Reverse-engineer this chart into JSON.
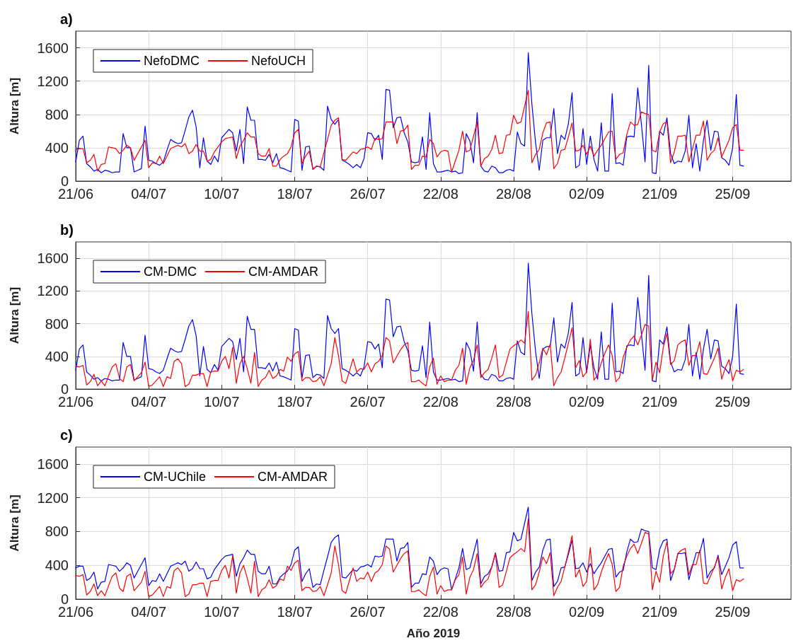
{
  "chart_data": [
    {
      "type": "line",
      "title": "a)",
      "ylabel": "Altura [m]",
      "categories": [
        "21/06",
        null,
        null,
        null,
        null,
        null,
        null,
        null,
        null,
        null,
        null,
        null,
        null,
        null,
        null,
        null,
        null,
        null,
        null,
        null,
        "04/07",
        null,
        null,
        null,
        null,
        null,
        null,
        null,
        null,
        null,
        null,
        null,
        null,
        null,
        null,
        null,
        null,
        null,
        null,
        null,
        "10/07",
        null,
        null,
        null,
        null,
        null,
        null,
        null,
        null,
        null,
        null,
        null,
        null,
        null,
        null,
        null,
        null,
        null,
        null,
        null,
        "18/07",
        null,
        null,
        null,
        null,
        null,
        null,
        null,
        null,
        null,
        null,
        null,
        null,
        null,
        null,
        null,
        null,
        null,
        null,
        null,
        "26/07",
        null,
        null,
        null,
        null,
        null,
        null,
        null,
        null,
        null,
        null,
        null,
        null,
        null,
        null,
        null,
        null,
        null,
        null,
        null,
        "22/08",
        null,
        null,
        null,
        null,
        null,
        null,
        null,
        null,
        null,
        null,
        null,
        null,
        null,
        null,
        null,
        null,
        null,
        null,
        null,
        "28/08",
        null,
        null,
        null,
        null,
        null,
        null,
        null,
        null,
        null,
        null,
        null,
        null,
        null,
        null,
        null,
        null,
        null,
        null,
        null,
        "02/09",
        null,
        null,
        null,
        null,
        null,
        null,
        null,
        null,
        null,
        null,
        null,
        null,
        null,
        null,
        null,
        null,
        null,
        null,
        null,
        "21/09",
        null,
        null,
        null,
        null,
        null,
        null,
        null,
        null,
        null,
        null,
        null,
        null,
        null,
        null,
        null,
        null,
        null,
        null,
        null,
        "25/09",
        null,
        null,
        null,
        null,
        null,
        null,
        null,
        null,
        null,
        null,
        null,
        null,
        null,
        null,
        null,
        null
      ],
      "ylim": [
        0,
        1800
      ],
      "yticks": [
        0,
        400,
        800,
        1200,
        1600
      ],
      "grid": true,
      "legend": "top left",
      "marker": "none",
      "line_style": "solid",
      "series": [
        {
          "name": "NefoDMC",
          "color": "#0000ff",
          "values": [
            230,
            490,
            540,
            210,
            170,
            120,
            140,
            100,
            130,
            120,
            100,
            110,
            110,
            570,
            400,
            400,
            110,
            130,
            150,
            660,
            250,
            240,
            210,
            190,
            230,
            370,
            500,
            470,
            450,
            460,
            610,
            770,
            850,
            650,
            160,
            520,
            240,
            200,
            300,
            230,
            520,
            570,
            620,
            580,
            360,
            620,
            210,
            890,
            730,
            730,
            260,
            260,
            250,
            320,
            220,
            330,
            160,
            150,
            130,
            110,
            740,
            720,
            130,
            410,
            420,
            140,
            180,
            170,
            130,
            900,
            740,
            680,
            740,
            250,
            230,
            200,
            160,
            200,
            160,
            270,
            580,
            570,
            490,
            550,
            260,
            1100,
            1090,
            640,
            760,
            770,
            580,
            470,
            230,
            220,
            230,
            530,
            140,
            820,
            210,
            110,
            110,
            120,
            130,
            110,
            120,
            90,
            100,
            570,
            480,
            220,
            820,
            180,
            120,
            110,
            180,
            160,
            100,
            100,
            130,
            140,
            120,
            590,
            450,
            420,
            1540,
            920,
            460,
            130,
            490,
            520,
            520,
            870,
            330,
            550,
            500,
            690,
            1060,
            160,
            190,
            630,
            200,
            540,
            260,
            120,
            700,
            120,
            120,
            1050,
            210,
            220,
            190,
            530,
            540,
            530,
            1120,
            680,
            230,
            1390,
            100,
            90,
            600,
            550,
            760,
            330,
            210,
            240,
            230,
            360,
            790,
            160,
            450,
            120,
            490,
            730,
            370,
            600,
            590,
            280,
            250,
            190,
            400,
            1040,
            190,
            180,
            null,
            null,
            null,
            null,
            null,
            null,
            null,
            null,
            null,
            null,
            null,
            null,
            null
          ]
        },
        {
          "name": "NefoUCH",
          "color": "#ff0000",
          "values": [
            370,
            390,
            390,
            220,
            250,
            320,
            120,
            200,
            210,
            410,
            400,
            390,
            330,
            370,
            430,
            400,
            250,
            330,
            410,
            490,
            160,
            220,
            210,
            300,
            210,
            300,
            390,
            410,
            430,
            410,
            450,
            330,
            360,
            440,
            360,
            360,
            240,
            260,
            350,
            410,
            470,
            510,
            520,
            530,
            270,
            420,
            490,
            580,
            530,
            530,
            330,
            300,
            300,
            390,
            180,
            180,
            260,
            300,
            330,
            410,
            580,
            620,
            210,
            300,
            360,
            140,
            180,
            170,
            340,
            500,
            670,
            730,
            760,
            260,
            250,
            300,
            350,
            330,
            380,
            390,
            410,
            380,
            510,
            500,
            510,
            710,
            710,
            710,
            450,
            600,
            610,
            670,
            140,
            190,
            190,
            300,
            290,
            500,
            450,
            290,
            350,
            370,
            360,
            110,
            240,
            370,
            600,
            350,
            370,
            540,
            710,
            180,
            270,
            300,
            380,
            550,
            330,
            340,
            550,
            560,
            790,
            690,
            710,
            900,
            1090,
            220,
            320,
            380,
            580,
            700,
            710,
            150,
            210,
            370,
            380,
            530,
            700,
            360,
            370,
            430,
            320,
            420,
            300,
            370,
            430,
            510,
            590,
            600,
            260,
            320,
            340,
            560,
            710,
            670,
            680,
            830,
            810,
            800,
            370,
            350,
            590,
            690,
            710,
            220,
            350,
            540,
            540,
            550,
            230,
            390,
            550,
            550,
            720,
            250,
            330,
            370,
            520,
            290,
            390,
            490,
            640,
            680,
            370,
            370,
            null,
            null,
            null,
            null,
            null,
            null,
            null,
            null,
            null,
            null,
            null,
            null,
            null
          ]
        }
      ]
    },
    {
      "type": "line",
      "title": "b)",
      "ylabel": "Altura [m]",
      "categories": [
        "21/06",
        null,
        null,
        null,
        null,
        null,
        null,
        null,
        null,
        null,
        null,
        null,
        null,
        null,
        null,
        null,
        null,
        null,
        null,
        null,
        "04/07",
        null,
        null,
        null,
        null,
        null,
        null,
        null,
        null,
        null,
        null,
        null,
        null,
        null,
        null,
        null,
        null,
        null,
        null,
        null,
        "10/07",
        null,
        null,
        null,
        null,
        null,
        null,
        null,
        null,
        null,
        null,
        null,
        null,
        null,
        null,
        null,
        null,
        null,
        null,
        null,
        "18/07",
        null,
        null,
        null,
        null,
        null,
        null,
        null,
        null,
        null,
        null,
        null,
        null,
        null,
        null,
        null,
        null,
        null,
        null,
        null,
        "26/07",
        null,
        null,
        null,
        null,
        null,
        null,
        null,
        null,
        null,
        null,
        null,
        null,
        null,
        null,
        null,
        null,
        null,
        null,
        null,
        "22/08",
        null,
        null,
        null,
        null,
        null,
        null,
        null,
        null,
        null,
        null,
        null,
        null,
        null,
        null,
        null,
        null,
        null,
        null,
        null,
        "28/08",
        null,
        null,
        null,
        null,
        null,
        null,
        null,
        null,
        null,
        null,
        null,
        null,
        null,
        null,
        null,
        null,
        null,
        null,
        null,
        "02/09",
        null,
        null,
        null,
        null,
        null,
        null,
        null,
        null,
        null,
        null,
        null,
        null,
        null,
        null,
        null,
        null,
        null,
        null,
        null,
        "21/09",
        null,
        null,
        null,
        null,
        null,
        null,
        null,
        null,
        null,
        null,
        null,
        null,
        null,
        null,
        null,
        null,
        null,
        null,
        null,
        "25/09",
        null,
        null,
        null,
        null,
        null,
        null,
        null,
        null,
        null,
        null,
        null,
        null,
        null,
        null,
        null,
        null
      ],
      "ylim": [
        0,
        1800
      ],
      "yticks": [
        0,
        400,
        800,
        1200,
        1600
      ],
      "grid": true,
      "legend": "top left",
      "marker": "none",
      "line_style": "solid",
      "series": [
        {
          "name": "CM-DMC",
          "color": "#0000ff",
          "values": [
            230,
            490,
            540,
            210,
            170,
            120,
            140,
            100,
            130,
            120,
            100,
            110,
            110,
            570,
            400,
            400,
            110,
            130,
            150,
            660,
            250,
            240,
            210,
            190,
            230,
            370,
            500,
            470,
            450,
            460,
            610,
            770,
            850,
            650,
            160,
            520,
            240,
            200,
            300,
            230,
            520,
            570,
            620,
            580,
            360,
            620,
            210,
            890,
            730,
            730,
            260,
            260,
            250,
            320,
            220,
            330,
            160,
            150,
            130,
            110,
            740,
            720,
            130,
            410,
            420,
            140,
            180,
            170,
            130,
            900,
            740,
            680,
            740,
            250,
            230,
            200,
            160,
            200,
            160,
            270,
            580,
            570,
            490,
            550,
            260,
            1100,
            1090,
            640,
            760,
            770,
            580,
            470,
            230,
            220,
            230,
            530,
            140,
            820,
            210,
            110,
            110,
            120,
            130,
            110,
            120,
            90,
            100,
            570,
            480,
            220,
            820,
            180,
            120,
            110,
            180,
            160,
            100,
            100,
            130,
            140,
            120,
            590,
            450,
            420,
            1540,
            920,
            460,
            130,
            490,
            520,
            520,
            870,
            330,
            550,
            500,
            690,
            1060,
            160,
            190,
            630,
            200,
            540,
            260,
            120,
            700,
            120,
            120,
            1050,
            210,
            220,
            190,
            530,
            540,
            530,
            1120,
            680,
            230,
            1390,
            100,
            90,
            600,
            550,
            760,
            330,
            210,
            240,
            230,
            360,
            790,
            160,
            450,
            120,
            490,
            730,
            370,
            600,
            590,
            280,
            250,
            190,
            400,
            1040,
            190,
            180,
            null,
            null,
            null,
            null,
            null,
            null,
            null,
            null,
            null,
            null,
            null,
            null,
            null
          ]
        },
        {
          "name": "CM-AMDAR",
          "color": "#ff0000",
          "values": [
            280,
            270,
            290,
            50,
            90,
            180,
            40,
            100,
            40,
            160,
            270,
            310,
            130,
            90,
            270,
            300,
            100,
            150,
            200,
            330,
            30,
            50,
            100,
            150,
            30,
            150,
            130,
            340,
            370,
            310,
            30,
            60,
            170,
            170,
            190,
            190,
            30,
            210,
            220,
            220,
            340,
            400,
            250,
            510,
            70,
            310,
            400,
            250,
            70,
            450,
            30,
            110,
            140,
            230,
            130,
            160,
            240,
            220,
            390,
            340,
            430,
            460,
            100,
            140,
            140,
            90,
            100,
            150,
            40,
            170,
            310,
            630,
            410,
            100,
            70,
            220,
            370,
            210,
            250,
            240,
            320,
            210,
            310,
            340,
            410,
            630,
            590,
            320,
            400,
            480,
            540,
            570,
            90,
            90,
            110,
            70,
            40,
            270,
            380,
            60,
            160,
            90,
            110,
            110,
            230,
            290,
            500,
            60,
            260,
            350,
            540,
            140,
            200,
            240,
            380,
            540,
            140,
            170,
            330,
            490,
            530,
            560,
            600,
            560,
            950,
            110,
            170,
            320,
            500,
            420,
            550,
            40,
            140,
            210,
            380,
            560,
            750,
            260,
            350,
            150,
            210,
            610,
            110,
            170,
            320,
            440,
            540,
            410,
            90,
            140,
            390,
            510,
            600,
            650,
            540,
            660,
            790,
            770,
            110,
            330,
            200,
            510,
            680,
            300,
            350,
            540,
            580,
            600,
            290,
            410,
            410,
            580,
            190,
            180,
            280,
            380,
            500,
            120,
            260,
            360,
            100,
            230,
            210,
            240,
            null,
            null,
            null,
            null,
            null,
            null,
            null,
            null,
            null,
            null,
            null,
            null,
            null
          ]
        }
      ]
    },
    {
      "type": "line",
      "title": "c)",
      "xlabel": "Año 2019",
      "ylabel": "Altura [m]",
      "categories": [
        "21/06",
        null,
        null,
        null,
        null,
        null,
        null,
        null,
        null,
        null,
        null,
        null,
        null,
        null,
        null,
        null,
        null,
        null,
        null,
        null,
        "04/07",
        null,
        null,
        null,
        null,
        null,
        null,
        null,
        null,
        null,
        null,
        null,
        null,
        null,
        null,
        null,
        null,
        null,
        null,
        null,
        "10/07",
        null,
        null,
        null,
        null,
        null,
        null,
        null,
        null,
        null,
        null,
        null,
        null,
        null,
        null,
        null,
        null,
        null,
        null,
        null,
        "18/07",
        null,
        null,
        null,
        null,
        null,
        null,
        null,
        null,
        null,
        null,
        null,
        null,
        null,
        null,
        null,
        null,
        null,
        null,
        null,
        "26/07",
        null,
        null,
        null,
        null,
        null,
        null,
        null,
        null,
        null,
        null,
        null,
        null,
        null,
        null,
        null,
        null,
        null,
        null,
        null,
        "22/08",
        null,
        null,
        null,
        null,
        null,
        null,
        null,
        null,
        null,
        null,
        null,
        null,
        null,
        null,
        null,
        null,
        null,
        null,
        null,
        "28/08",
        null,
        null,
        null,
        null,
        null,
        null,
        null,
        null,
        null,
        null,
        null,
        null,
        null,
        null,
        null,
        null,
        null,
        null,
        null,
        "02/09",
        null,
        null,
        null,
        null,
        null,
        null,
        null,
        null,
        null,
        null,
        null,
        null,
        null,
        null,
        null,
        null,
        null,
        null,
        null,
        "21/09",
        null,
        null,
        null,
        null,
        null,
        null,
        null,
        null,
        null,
        null,
        null,
        null,
        null,
        null,
        null,
        null,
        null,
        null,
        null,
        "25/09",
        null,
        null,
        null,
        null,
        null,
        null,
        null,
        null,
        null,
        null,
        null,
        null,
        null,
        null,
        null,
        null
      ],
      "ylim": [
        0,
        1800
      ],
      "yticks": [
        0,
        400,
        800,
        1200,
        1600
      ],
      "grid": true,
      "legend": "top left",
      "marker": "none",
      "line_style": "solid",
      "series": [
        {
          "name": "CM-UChile",
          "color": "#0000ff",
          "values": [
            370,
            390,
            390,
            220,
            250,
            320,
            120,
            200,
            210,
            410,
            400,
            390,
            330,
            370,
            430,
            400,
            250,
            330,
            410,
            490,
            160,
            220,
            210,
            300,
            210,
            300,
            390,
            410,
            430,
            410,
            450,
            330,
            360,
            440,
            360,
            360,
            240,
            260,
            350,
            410,
            470,
            510,
            520,
            530,
            270,
            420,
            490,
            580,
            530,
            530,
            330,
            300,
            300,
            390,
            180,
            180,
            260,
            300,
            330,
            410,
            580,
            620,
            210,
            300,
            360,
            140,
            180,
            170,
            340,
            500,
            670,
            730,
            760,
            260,
            250,
            300,
            350,
            330,
            380,
            390,
            410,
            380,
            510,
            500,
            510,
            710,
            710,
            710,
            450,
            600,
            610,
            670,
            140,
            190,
            190,
            300,
            290,
            500,
            450,
            290,
            350,
            370,
            360,
            110,
            240,
            370,
            600,
            350,
            370,
            540,
            710,
            180,
            270,
            300,
            380,
            550,
            330,
            340,
            550,
            560,
            790,
            690,
            710,
            900,
            1090,
            220,
            320,
            380,
            580,
            700,
            710,
            150,
            210,
            370,
            380,
            530,
            700,
            360,
            370,
            430,
            320,
            420,
            300,
            370,
            430,
            510,
            590,
            600,
            260,
            320,
            340,
            560,
            710,
            670,
            680,
            830,
            810,
            800,
            370,
            350,
            590,
            690,
            710,
            220,
            350,
            540,
            540,
            550,
            230,
            390,
            550,
            550,
            720,
            250,
            330,
            370,
            520,
            290,
            390,
            490,
            640,
            680,
            370,
            370,
            null,
            null,
            null,
            null,
            null,
            null,
            null,
            null,
            null,
            null,
            null,
            null,
            null
          ]
        },
        {
          "name": "CM-AMDAR",
          "color": "#ff0000",
          "values": [
            280,
            270,
            290,
            50,
            90,
            180,
            40,
            100,
            40,
            160,
            270,
            310,
            130,
            90,
            270,
            300,
            100,
            150,
            200,
            330,
            30,
            50,
            100,
            150,
            30,
            150,
            130,
            340,
            370,
            310,
            30,
            60,
            170,
            170,
            190,
            190,
            30,
            210,
            220,
            220,
            340,
            400,
            250,
            510,
            70,
            310,
            400,
            250,
            70,
            450,
            30,
            110,
            140,
            230,
            130,
            160,
            240,
            220,
            390,
            340,
            430,
            460,
            100,
            140,
            140,
            90,
            100,
            150,
            40,
            170,
            310,
            630,
            410,
            100,
            70,
            220,
            370,
            210,
            250,
            240,
            320,
            210,
            310,
            340,
            410,
            630,
            590,
            320,
            400,
            480,
            540,
            570,
            90,
            90,
            110,
            70,
            40,
            270,
            380,
            60,
            160,
            90,
            110,
            110,
            230,
            290,
            500,
            60,
            260,
            350,
            540,
            140,
            200,
            240,
            380,
            540,
            140,
            170,
            330,
            490,
            530,
            560,
            600,
            560,
            950,
            110,
            170,
            320,
            500,
            420,
            550,
            40,
            140,
            210,
            380,
            560,
            750,
            260,
            350,
            150,
            210,
            610,
            110,
            170,
            320,
            440,
            540,
            410,
            90,
            140,
            390,
            510,
            600,
            650,
            540,
            660,
            790,
            770,
            110,
            330,
            200,
            510,
            680,
            300,
            350,
            540,
            580,
            600,
            290,
            410,
            410,
            580,
            190,
            180,
            280,
            380,
            500,
            120,
            260,
            360,
            100,
            230,
            210,
            240,
            null,
            null,
            null,
            null,
            null,
            null,
            null,
            null,
            null,
            null,
            null,
            null,
            null
          ]
        }
      ]
    }
  ]
}
